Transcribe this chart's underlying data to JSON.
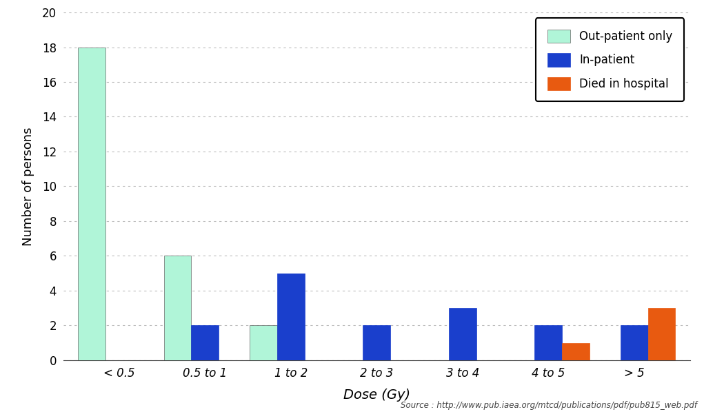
{
  "categories": [
    "< 0.5",
    "0.5 to 1",
    "1 to 2",
    "2 to 3",
    "3 to 4",
    "4 to 5",
    "> 5"
  ],
  "outpatient": [
    18,
    6,
    2,
    0,
    0,
    0,
    0
  ],
  "inpatient": [
    0,
    2,
    5,
    2,
    3,
    2,
    2
  ],
  "died": [
    0,
    0,
    0,
    0,
    0,
    1,
    3
  ],
  "outpatient_color": "#b0f5d8",
  "inpatient_color": "#1a3fcc",
  "died_color": "#e85a10",
  "bar_width": 0.32,
  "xlabel": "Dose (Gy)",
  "ylabel": "Number of persons",
  "ylim": [
    0,
    20
  ],
  "yticks": [
    0,
    2,
    4,
    6,
    8,
    10,
    12,
    14,
    16,
    18,
    20
  ],
  "legend_labels": [
    "Out-patient only",
    "In-patient",
    "Died in hospital"
  ],
  "source_text": "Source : http://www.pub.iaea.org/mtcd/publications/pdf/pub815_web.pdf",
  "background_color": "#ffffff",
  "grid_color": "#bbbbbb",
  "xlabel_fontsize": 14,
  "ylabel_fontsize": 13,
  "tick_fontsize": 12,
  "legend_fontsize": 12,
  "source_fontsize": 8.5,
  "figure_width": 10.21,
  "figure_height": 6.01,
  "dpi": 100
}
